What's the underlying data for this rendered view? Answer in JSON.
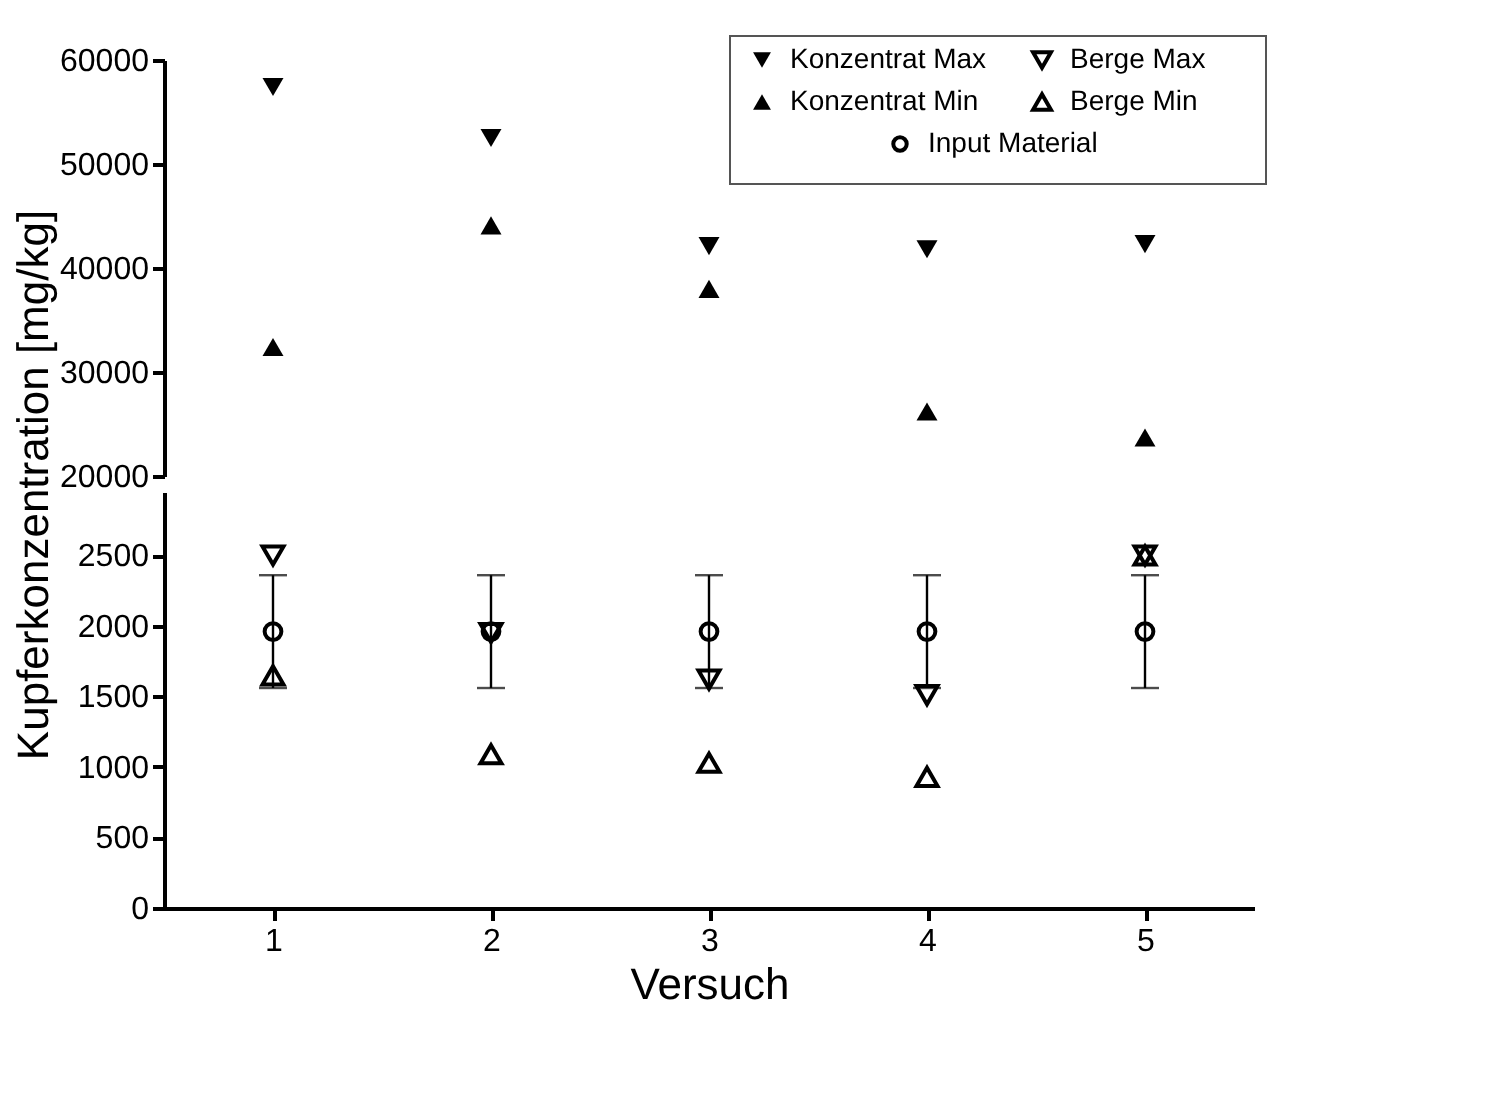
{
  "chart_data": [
    {
      "type": "scatter",
      "x": [
        1,
        2,
        3,
        4,
        5
      ],
      "ylim": [
        20000,
        60000
      ],
      "yticks": [
        20000,
        30000,
        40000,
        50000,
        60000
      ],
      "tick_labels": "y",
      "grid": false,
      "legend": "top right",
      "series": [
        {
          "name": "Konzentrat Max",
          "color": "#000000",
          "marker": "triangle-down",
          "values": [
            57400,
            52500,
            42100,
            41800,
            42300
          ]
        },
        {
          "name": "Konzentrat Min",
          "color": "#000000",
          "marker": "triangle",
          "values": [
            32400,
            44100,
            38000,
            26200,
            23700
          ]
        }
      ]
    },
    {
      "type": "scatter",
      "x": [
        1,
        2,
        3,
        4,
        5
      ],
      "xlim": [
        0.5,
        5.5
      ],
      "xticks": [
        1,
        2,
        3,
        4,
        5
      ],
      "ylim": [
        0,
        2950
      ],
      "yticks": [
        0,
        500,
        1000,
        1500,
        2000,
        2500
      ],
      "xlabel": "Versuch",
      "ylabel": "Kupferkonzentration [mg/kg]",
      "grid": false,
      "legend": "top right",
      "series": [
        {
          "name": "Berge Max",
          "color": "#000000",
          "marker": "triangle-down",
          "values": [
            2500,
            1950,
            1620,
            1510,
            2500
          ]
        },
        {
          "name": "Berge Min",
          "color": "#000000",
          "marker": "triangle",
          "values": [
            1650,
            1090,
            1030,
            930,
            2500
          ]
        },
        {
          "name": "Input Material",
          "color": "#000000",
          "marker": "circle",
          "values": [
            1960,
            1960,
            1960,
            1960,
            1960
          ],
          "errors": [
            400,
            400,
            400,
            400,
            400
          ]
        }
      ]
    }
  ]
}
